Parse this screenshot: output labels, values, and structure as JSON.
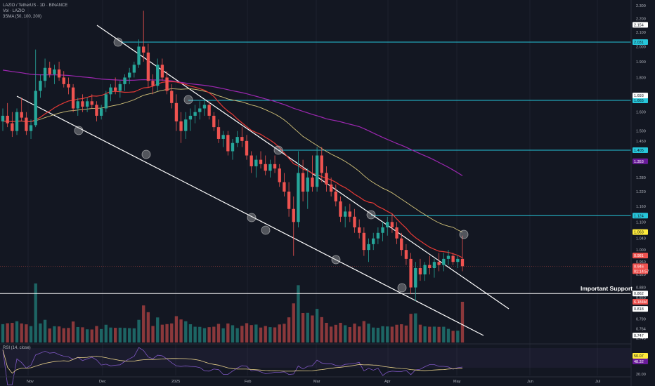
{
  "header": {
    "symbol_line": "LAZIO / TetherUS · 1D · BINANCE",
    "vol_line": "Vol · LAZIO",
    "sma_line": "3SMA (50, 100, 200)",
    "rsi_line": "RSI (14, close)"
  },
  "annotation": {
    "support_label": "Important Support"
  },
  "colors": {
    "background": "#131722",
    "up": "#26a69a",
    "down": "#ef5350",
    "sma50": "#e53935",
    "sma100": "#d4c47a",
    "sma200": "#9c27b0",
    "resistance_lines": "#26c6da",
    "trend_lines": "#ffffff",
    "rsi_line": "#7e57c2",
    "rsi_ma": "#e8d18a"
  },
  "chart_data": {
    "type": "candlestick",
    "price_axis_labels": [
      "2.300",
      "2.200",
      "2.100",
      "2.000",
      "1.900",
      "1.800",
      "1.700",
      "1.600",
      "1.500",
      "1.450",
      "1.400",
      "1.280",
      "1.220",
      "1.160",
      "1.100",
      "1.040",
      "1.000",
      "0.960",
      "0.920",
      "0.880",
      "0.850",
      "0.790",
      "0.764",
      "0.740"
    ],
    "time_axis_labels": [
      "Nov",
      "Dec",
      "2025",
      "Feb",
      "Mar",
      "Apr",
      "May",
      "Jun",
      "Jul"
    ],
    "horizontal_levels": [
      {
        "price": 2.031,
        "label": "2.031",
        "kind": "resistance"
      },
      {
        "price": 1.665,
        "label": "1.665",
        "kind": "resistance"
      },
      {
        "price": 1.405,
        "label": "1.405",
        "kind": "resistance"
      },
      {
        "price": 1.124,
        "label": "1.124",
        "kind": "resistance"
      },
      {
        "price": 0.862,
        "label": "0.862",
        "kind": "support"
      }
    ],
    "price_tags": [
      {
        "label": "2.154",
        "price": 2.154,
        "style": "white"
      },
      {
        "label": "1.693",
        "price": 1.693,
        "style": "white"
      },
      {
        "label": "1.353",
        "price": 1.353,
        "style": "purple"
      },
      {
        "label": "1.063",
        "price": 1.063,
        "style": "yellow"
      },
      {
        "label": "0.981",
        "price": 0.981,
        "style": "red"
      },
      {
        "label": "0.946",
        "price": 0.946,
        "style": "red"
      },
      {
        "label": "01:14:57",
        "price": 0.93,
        "style": "red"
      },
      {
        "label": "0.818",
        "price": 0.818,
        "style": "white"
      },
      {
        "label": "0.747",
        "price": 0.747,
        "style": "white"
      }
    ],
    "volume_tag": {
      "label": "6.184M",
      "style": "red"
    },
    "rsi_tags": [
      {
        "label": "50.07",
        "style": "yellow"
      },
      {
        "label": "48.32",
        "style": "purple"
      }
    ],
    "rsi_axis_label": "20.00",
    "candles": [
      {
        "o": 1.55,
        "h": 1.62,
        "l": 1.5,
        "c": 1.58
      },
      {
        "o": 1.58,
        "h": 1.65,
        "l": 1.52,
        "c": 1.54
      },
      {
        "o": 1.54,
        "h": 1.6,
        "l": 1.47,
        "c": 1.5
      },
      {
        "o": 1.5,
        "h": 1.62,
        "l": 1.48,
        "c": 1.6
      },
      {
        "o": 1.6,
        "h": 1.68,
        "l": 1.55,
        "c": 1.57
      },
      {
        "o": 1.57,
        "h": 1.6,
        "l": 1.48,
        "c": 1.5
      },
      {
        "o": 1.5,
        "h": 1.56,
        "l": 1.46,
        "c": 1.53
      },
      {
        "o": 1.53,
        "h": 1.98,
        "l": 1.52,
        "c": 1.72
      },
      {
        "o": 1.72,
        "h": 1.82,
        "l": 1.68,
        "c": 1.78
      },
      {
        "o": 1.78,
        "h": 1.92,
        "l": 1.74,
        "c": 1.86
      },
      {
        "o": 1.86,
        "h": 1.9,
        "l": 1.8,
        "c": 1.82
      },
      {
        "o": 1.82,
        "h": 1.88,
        "l": 1.76,
        "c": 1.85
      },
      {
        "o": 1.85,
        "h": 1.9,
        "l": 1.78,
        "c": 1.8
      },
      {
        "o": 1.8,
        "h": 1.84,
        "l": 1.74,
        "c": 1.76
      },
      {
        "o": 1.76,
        "h": 1.8,
        "l": 1.7,
        "c": 1.74
      },
      {
        "o": 1.74,
        "h": 1.76,
        "l": 1.6,
        "c": 1.62
      },
      {
        "o": 1.62,
        "h": 1.68,
        "l": 1.58,
        "c": 1.66
      },
      {
        "o": 1.66,
        "h": 1.7,
        "l": 1.6,
        "c": 1.63
      },
      {
        "o": 1.63,
        "h": 1.68,
        "l": 1.6,
        "c": 1.66
      },
      {
        "o": 1.66,
        "h": 1.7,
        "l": 1.62,
        "c": 1.64
      },
      {
        "o": 1.64,
        "h": 1.66,
        "l": 1.55,
        "c": 1.58
      },
      {
        "o": 1.58,
        "h": 1.64,
        "l": 1.56,
        "c": 1.62
      },
      {
        "o": 1.62,
        "h": 1.72,
        "l": 1.6,
        "c": 1.7
      },
      {
        "o": 1.7,
        "h": 1.76,
        "l": 1.66,
        "c": 1.74
      },
      {
        "o": 1.74,
        "h": 1.8,
        "l": 1.7,
        "c": 1.72
      },
      {
        "o": 1.72,
        "h": 1.78,
        "l": 1.68,
        "c": 1.76
      },
      {
        "o": 1.76,
        "h": 1.82,
        "l": 1.72,
        "c": 1.8
      },
      {
        "o": 1.8,
        "h": 1.86,
        "l": 1.76,
        "c": 1.83
      },
      {
        "o": 1.83,
        "h": 1.9,
        "l": 1.8,
        "c": 1.88
      },
      {
        "o": 1.88,
        "h": 2.05,
        "l": 1.86,
        "c": 2.0
      },
      {
        "o": 2.0,
        "h": 2.26,
        "l": 1.9,
        "c": 1.96
      },
      {
        "o": 1.96,
        "h": 2.02,
        "l": 1.74,
        "c": 1.78
      },
      {
        "o": 1.78,
        "h": 1.82,
        "l": 1.7,
        "c": 1.75
      },
      {
        "o": 1.75,
        "h": 1.92,
        "l": 1.72,
        "c": 1.88
      },
      {
        "o": 1.88,
        "h": 1.92,
        "l": 1.78,
        "c": 1.8
      },
      {
        "o": 1.8,
        "h": 1.84,
        "l": 1.7,
        "c": 1.72
      },
      {
        "o": 1.72,
        "h": 1.76,
        "l": 1.62,
        "c": 1.65
      },
      {
        "o": 1.65,
        "h": 1.7,
        "l": 1.5,
        "c": 1.55
      },
      {
        "o": 1.55,
        "h": 1.6,
        "l": 1.44,
        "c": 1.5
      },
      {
        "o": 1.5,
        "h": 1.6,
        "l": 1.46,
        "c": 1.56
      },
      {
        "o": 1.56,
        "h": 1.62,
        "l": 1.5,
        "c": 1.58
      },
      {
        "o": 1.58,
        "h": 1.64,
        "l": 1.54,
        "c": 1.6
      },
      {
        "o": 1.6,
        "h": 1.66,
        "l": 1.56,
        "c": 1.62
      },
      {
        "o": 1.62,
        "h": 1.67,
        "l": 1.58,
        "c": 1.64
      },
      {
        "o": 1.64,
        "h": 1.66,
        "l": 1.56,
        "c": 1.58
      },
      {
        "o": 1.58,
        "h": 1.6,
        "l": 1.5,
        "c": 1.52
      },
      {
        "o": 1.52,
        "h": 1.56,
        "l": 1.44,
        "c": 1.46
      },
      {
        "o": 1.46,
        "h": 1.5,
        "l": 1.42,
        "c": 1.48
      },
      {
        "o": 1.48,
        "h": 1.5,
        "l": 1.38,
        "c": 1.4
      },
      {
        "o": 1.4,
        "h": 1.46,
        "l": 1.36,
        "c": 1.44
      },
      {
        "o": 1.44,
        "h": 1.5,
        "l": 1.42,
        "c": 1.47
      },
      {
        "o": 1.47,
        "h": 1.52,
        "l": 1.42,
        "c": 1.45
      },
      {
        "o": 1.45,
        "h": 1.48,
        "l": 1.36,
        "c": 1.38
      },
      {
        "o": 1.38,
        "h": 1.4,
        "l": 1.3,
        "c": 1.33
      },
      {
        "o": 1.33,
        "h": 1.38,
        "l": 1.28,
        "c": 1.36
      },
      {
        "o": 1.36,
        "h": 1.4,
        "l": 1.32,
        "c": 1.34
      },
      {
        "o": 1.34,
        "h": 1.38,
        "l": 1.29,
        "c": 1.31
      },
      {
        "o": 1.31,
        "h": 1.36,
        "l": 1.28,
        "c": 1.34
      },
      {
        "o": 1.34,
        "h": 1.38,
        "l": 1.3,
        "c": 1.32
      },
      {
        "o": 1.32,
        "h": 1.34,
        "l": 1.24,
        "c": 1.26
      },
      {
        "o": 1.26,
        "h": 1.3,
        "l": 1.2,
        "c": 1.22
      },
      {
        "o": 1.22,
        "h": 1.26,
        "l": 1.12,
        "c": 1.15
      },
      {
        "o": 1.15,
        "h": 1.2,
        "l": 0.98,
        "c": 1.1
      },
      {
        "o": 1.1,
        "h": 1.4,
        "l": 1.08,
        "c": 1.3
      },
      {
        "o": 1.3,
        "h": 1.36,
        "l": 1.18,
        "c": 1.22
      },
      {
        "o": 1.22,
        "h": 1.32,
        "l": 1.15,
        "c": 1.28
      },
      {
        "o": 1.28,
        "h": 1.38,
        "l": 1.22,
        "c": 1.24
      },
      {
        "o": 1.24,
        "h": 1.42,
        "l": 1.22,
        "c": 1.38
      },
      {
        "o": 1.38,
        "h": 1.42,
        "l": 1.26,
        "c": 1.3
      },
      {
        "o": 1.3,
        "h": 1.33,
        "l": 1.22,
        "c": 1.25
      },
      {
        "o": 1.25,
        "h": 1.28,
        "l": 1.2,
        "c": 1.22
      },
      {
        "o": 1.22,
        "h": 1.25,
        "l": 1.16,
        "c": 1.18
      },
      {
        "o": 1.18,
        "h": 1.2,
        "l": 1.1,
        "c": 1.12
      },
      {
        "o": 1.12,
        "h": 1.16,
        "l": 1.08,
        "c": 1.14
      },
      {
        "o": 1.14,
        "h": 1.17,
        "l": 1.1,
        "c": 1.12
      },
      {
        "o": 1.12,
        "h": 1.15,
        "l": 1.06,
        "c": 1.08
      },
      {
        "o": 1.08,
        "h": 1.11,
        "l": 1.04,
        "c": 1.06
      },
      {
        "o": 1.06,
        "h": 1.08,
        "l": 0.98,
        "c": 1.0
      },
      {
        "o": 1.0,
        "h": 1.04,
        "l": 0.96,
        "c": 1.02
      },
      {
        "o": 1.02,
        "h": 1.06,
        "l": 1.0,
        "c": 1.04
      },
      {
        "o": 1.04,
        "h": 1.08,
        "l": 1.02,
        "c": 1.06
      },
      {
        "o": 1.06,
        "h": 1.1,
        "l": 1.03,
        "c": 1.08
      },
      {
        "o": 1.08,
        "h": 1.12,
        "l": 1.05,
        "c": 1.1
      },
      {
        "o": 1.1,
        "h": 1.13,
        "l": 1.06,
        "c": 1.08
      },
      {
        "o": 1.08,
        "h": 1.1,
        "l": 1.02,
        "c": 1.04
      },
      {
        "o": 1.04,
        "h": 1.06,
        "l": 0.98,
        "c": 1.0
      },
      {
        "o": 1.0,
        "h": 1.02,
        "l": 0.95,
        "c": 0.97
      },
      {
        "o": 0.97,
        "h": 0.99,
        "l": 0.86,
        "c": 0.88
      },
      {
        "o": 0.88,
        "h": 0.96,
        "l": 0.84,
        "c": 0.94
      },
      {
        "o": 0.94,
        "h": 0.97,
        "l": 0.9,
        "c": 0.92
      },
      {
        "o": 0.92,
        "h": 0.96,
        "l": 0.9,
        "c": 0.95
      },
      {
        "o": 0.95,
        "h": 0.98,
        "l": 0.92,
        "c": 0.94
      },
      {
        "o": 0.94,
        "h": 0.97,
        "l": 0.91,
        "c": 0.96
      },
      {
        "o": 0.96,
        "h": 0.99,
        "l": 0.93,
        "c": 0.95
      },
      {
        "o": 0.95,
        "h": 0.99,
        "l": 0.93,
        "c": 0.97
      },
      {
        "o": 0.97,
        "h": 1.0,
        "l": 0.95,
        "c": 0.98
      },
      {
        "o": 0.98,
        "h": 0.99,
        "l": 0.95,
        "c": 0.96
      },
      {
        "o": 0.96,
        "h": 0.98,
        "l": 0.94,
        "c": 0.97
      },
      {
        "o": 0.97,
        "h": 1.05,
        "l": 0.93,
        "c": 0.946
      }
    ]
  }
}
